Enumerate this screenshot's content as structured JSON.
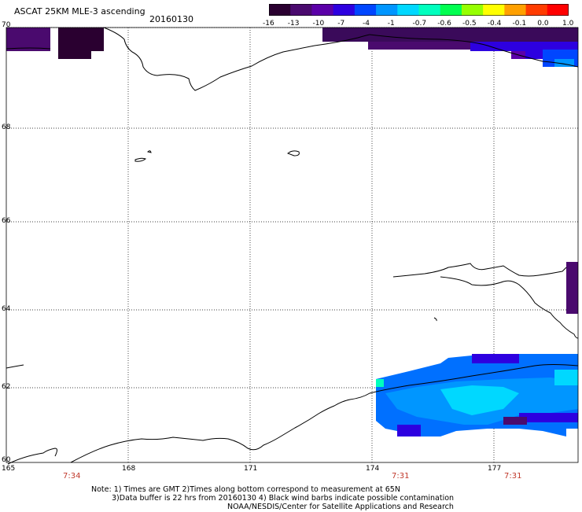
{
  "header": {
    "title": "ASCAT 25KM MLE-3 ascending",
    "date": "20160130"
  },
  "colorbar": {
    "ticks": [
      "-16",
      "-13",
      "-10",
      "-7",
      "-4",
      "-1",
      "-0.7",
      "-0.6",
      "-0.5",
      "-0.4",
      "-0.1",
      "0.0",
      "1.0"
    ],
    "colors": [
      "#2a0030",
      "#4a0a6e",
      "#5b00a8",
      "#2d00e0",
      "#0046ff",
      "#0096ff",
      "#00d8ff",
      "#00ffbe",
      "#00ff50",
      "#96ff00",
      "#ffff00",
      "#ffa000",
      "#ff3c00",
      "#ff0000"
    ]
  },
  "axes": {
    "lat_labels": [
      "70",
      "68",
      "66",
      "64",
      "62",
      "60"
    ],
    "lon_labels": [
      "165",
      "168",
      "171",
      "174",
      "177"
    ]
  },
  "pass_times": [
    "7:34",
    "7:31",
    "7:31"
  ],
  "notes": {
    "line1": "Note: 1) Times are GMT 2)Times along bottom correspond to measurement at 65N",
    "line2": "3)Data buffer is 22 hrs from 20160130 4) Black wind barbs indicate possible contamination",
    "line3": "NOAA/NESDIS/Center for Satellite Applications and Research"
  }
}
